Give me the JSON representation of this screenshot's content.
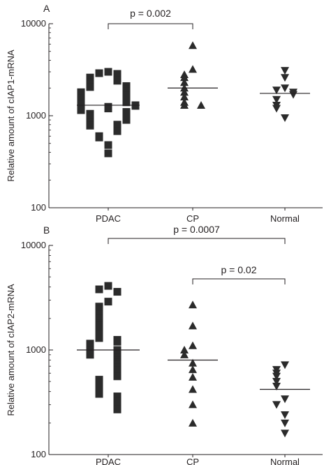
{
  "colors": {
    "ink": "#231f20",
    "marker": "#2b2b2b"
  },
  "chart_data": [
    {
      "type": "scatter",
      "panel": "A",
      "ylabel": "Relative amount of cIAP1-mRNA",
      "yscale": "log",
      "ylim": [
        100,
        10000
      ],
      "yticks": [
        "100",
        "1000",
        "10000"
      ],
      "categories": [
        "PDAC",
        "CP",
        "Normal"
      ],
      "series": [
        {
          "category": "PDAC",
          "marker": "square",
          "values": [
            3000,
            2900,
            2850,
            2600,
            2450,
            2400,
            2300,
            2200,
            2100,
            2050,
            2000,
            1950,
            1850,
            1800,
            1750,
            1700,
            1650,
            1600,
            1550,
            1500,
            1450,
            1400,
            1380,
            1350,
            1320,
            1300,
            1280,
            1250,
            1200,
            1150,
            1100,
            1050,
            1000,
            980,
            950,
            900,
            850,
            800,
            780,
            720,
            680,
            600,
            580,
            480,
            390
          ],
          "median": 1300
        },
        {
          "category": "CP",
          "marker": "triangle-up",
          "values": [
            5800,
            3200,
            2800,
            2600,
            2300,
            2000,
            1800,
            1600,
            1400,
            1300,
            1300
          ],
          "median": 2000
        },
        {
          "category": "Normal",
          "marker": "triangle-down",
          "values": [
            3100,
            2600,
            2000,
            1900,
            1800,
            1700,
            1500,
            1300,
            1200,
            950
          ],
          "median": 1750
        }
      ],
      "comparisons": [
        {
          "from": "PDAC",
          "to": "CP",
          "label": "p = 0.002"
        }
      ]
    },
    {
      "type": "scatter",
      "panel": "B",
      "ylabel": "Relative amount of cIAP2-mRNA",
      "yscale": "log",
      "ylim": [
        100,
        10000
      ],
      "yticks": [
        "100",
        "1000",
        "10000"
      ],
      "categories": [
        "PDAC",
        "CP",
        "Normal"
      ],
      "series": [
        {
          "category": "PDAC",
          "marker": "square",
          "values": [
            4100,
            3800,
            3600,
            2900,
            2600,
            2450,
            2200,
            2000,
            1800,
            1700,
            1500,
            1400,
            1300,
            1250,
            1200,
            1150,
            1100,
            1050,
            1000,
            980,
            950,
            900,
            850,
            800,
            760,
            720,
            680,
            640,
            600,
            560,
            520,
            480,
            440,
            400,
            380,
            360,
            340,
            320,
            300,
            280,
            270
          ],
          "median": 1000
        },
        {
          "category": "CP",
          "marker": "triangle-up",
          "values": [
            2700,
            1700,
            1100,
            1000,
            900,
            750,
            650,
            550,
            420,
            300,
            200
          ],
          "median": 800
        },
        {
          "category": "Normal",
          "marker": "triangle-down",
          "values": [
            720,
            650,
            600,
            560,
            500,
            450,
            340,
            300,
            240,
            200,
            160
          ],
          "median": 420
        }
      ],
      "comparisons": [
        {
          "from": "PDAC",
          "to": "Normal",
          "label": "p = 0.0007"
        },
        {
          "from": "CP",
          "to": "Normal",
          "label": "p = 0.02"
        }
      ]
    }
  ]
}
